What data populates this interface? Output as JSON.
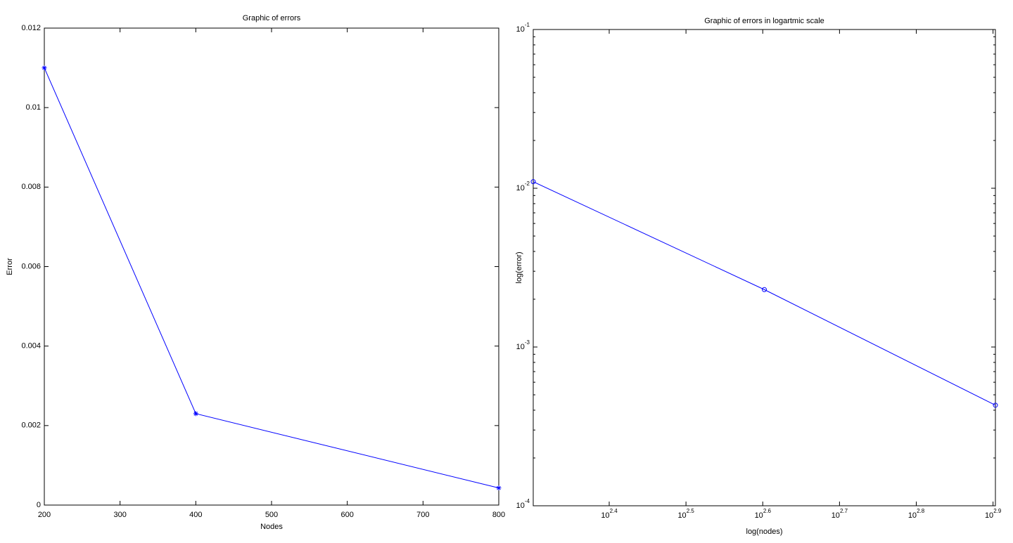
{
  "chart_data": [
    {
      "type": "line",
      "title": "Graphic of errors",
      "xlabel": "Nodes",
      "ylabel": "Error",
      "x": [
        200,
        400,
        800
      ],
      "series": [
        {
          "color": "#0000ff",
          "marker": "*",
          "values": [
            0.011,
            0.0023,
            0.00043
          ]
        }
      ],
      "xlim": [
        200,
        800
      ],
      "xticks": [
        200,
        300,
        400,
        500,
        600,
        700,
        800
      ],
      "ylim": [
        0,
        0.012
      ],
      "yticks": [
        0,
        0.002,
        0.004,
        0.006,
        0.008,
        0.01,
        0.012
      ],
      "xscale": "linear",
      "yscale": "linear"
    },
    {
      "type": "line",
      "title": "Graphic of errors in logartmic scale",
      "xlabel": "log(nodes)",
      "ylabel": "log(error)",
      "x": [
        200,
        400,
        800
      ],
      "series": [
        {
          "color": "#0000ff",
          "marker": "o",
          "values": [
            0.011,
            0.0023,
            0.00043
          ]
        }
      ],
      "xlim": [
        200,
        800
      ],
      "xticks": [
        {
          "value": 251.19,
          "label": "10^2.4"
        },
        {
          "value": 316.23,
          "label": "10^2.5"
        },
        {
          "value": 398.11,
          "label": "10^2.6"
        },
        {
          "value": 501.19,
          "label": "10^2.7"
        },
        {
          "value": 630.96,
          "label": "10^2.8"
        },
        {
          "value": 794.33,
          "label": "10^2.9"
        }
      ],
      "ylim": [
        0.0001,
        0.1
      ],
      "yticks": [
        {
          "value": 0.0001,
          "label": "10^-4"
        },
        {
          "value": 0.001,
          "label": "10^-3"
        },
        {
          "value": 0.01,
          "label": "10^-2"
        },
        {
          "value": 0.1,
          "label": "10^-1"
        }
      ],
      "xscale": "log",
      "yscale": "log"
    }
  ]
}
